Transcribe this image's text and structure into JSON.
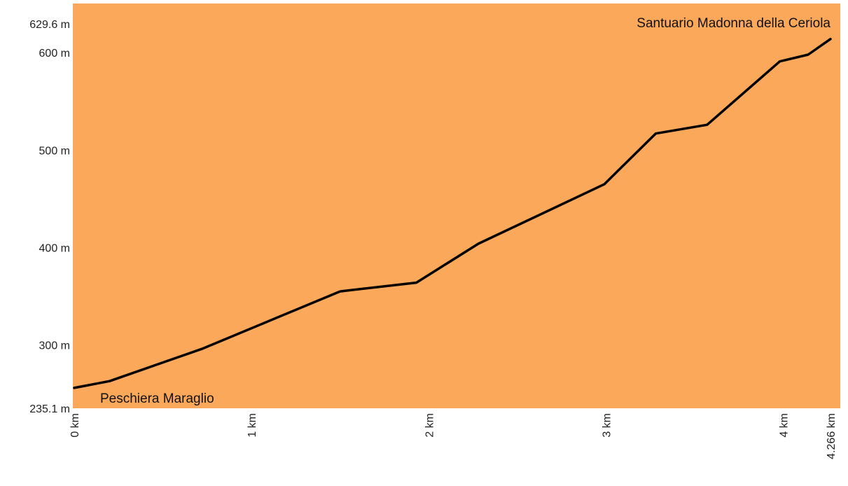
{
  "chart_data": {
    "type": "area",
    "title": "",
    "xlabel": "",
    "ylabel": "",
    "ylim": [
      235.1,
      629.6
    ],
    "xlim": [
      0,
      4.266
    ],
    "grid": false,
    "colors": {
      "fill": "#fca85a",
      "line": "#000000"
    },
    "x": [
      0,
      0.2,
      0.72,
      1.5,
      1.93,
      2.28,
      2.99,
      3.28,
      3.57,
      3.98,
      4.14,
      4.266
    ],
    "y": [
      256,
      263,
      296,
      355,
      364,
      404,
      465,
      517,
      526,
      591,
      598,
      614
    ],
    "y_ticks": [
      {
        "value": 235.1,
        "label": "235.1 m"
      },
      {
        "value": 300,
        "label": "300 m"
      },
      {
        "value": 400,
        "label": "400 m"
      },
      {
        "value": 500,
        "label": "500 m"
      },
      {
        "value": 600,
        "label": "600 m"
      },
      {
        "value": 629.6,
        "label": "629.6 m"
      }
    ],
    "x_ticks": [
      {
        "value": 0,
        "label": "0 km"
      },
      {
        "value": 1,
        "label": "1 km"
      },
      {
        "value": 2,
        "label": "2 km"
      },
      {
        "value": 3,
        "label": "3 km"
      },
      {
        "value": 4,
        "label": "4 km"
      },
      {
        "value": 4.266,
        "label": "4.266 km"
      }
    ],
    "annotations": [
      {
        "text": "Peschiera Maraglio",
        "anchor": "start"
      },
      {
        "text": "Santuario Madonna della Ceriola",
        "anchor": "end"
      }
    ]
  }
}
